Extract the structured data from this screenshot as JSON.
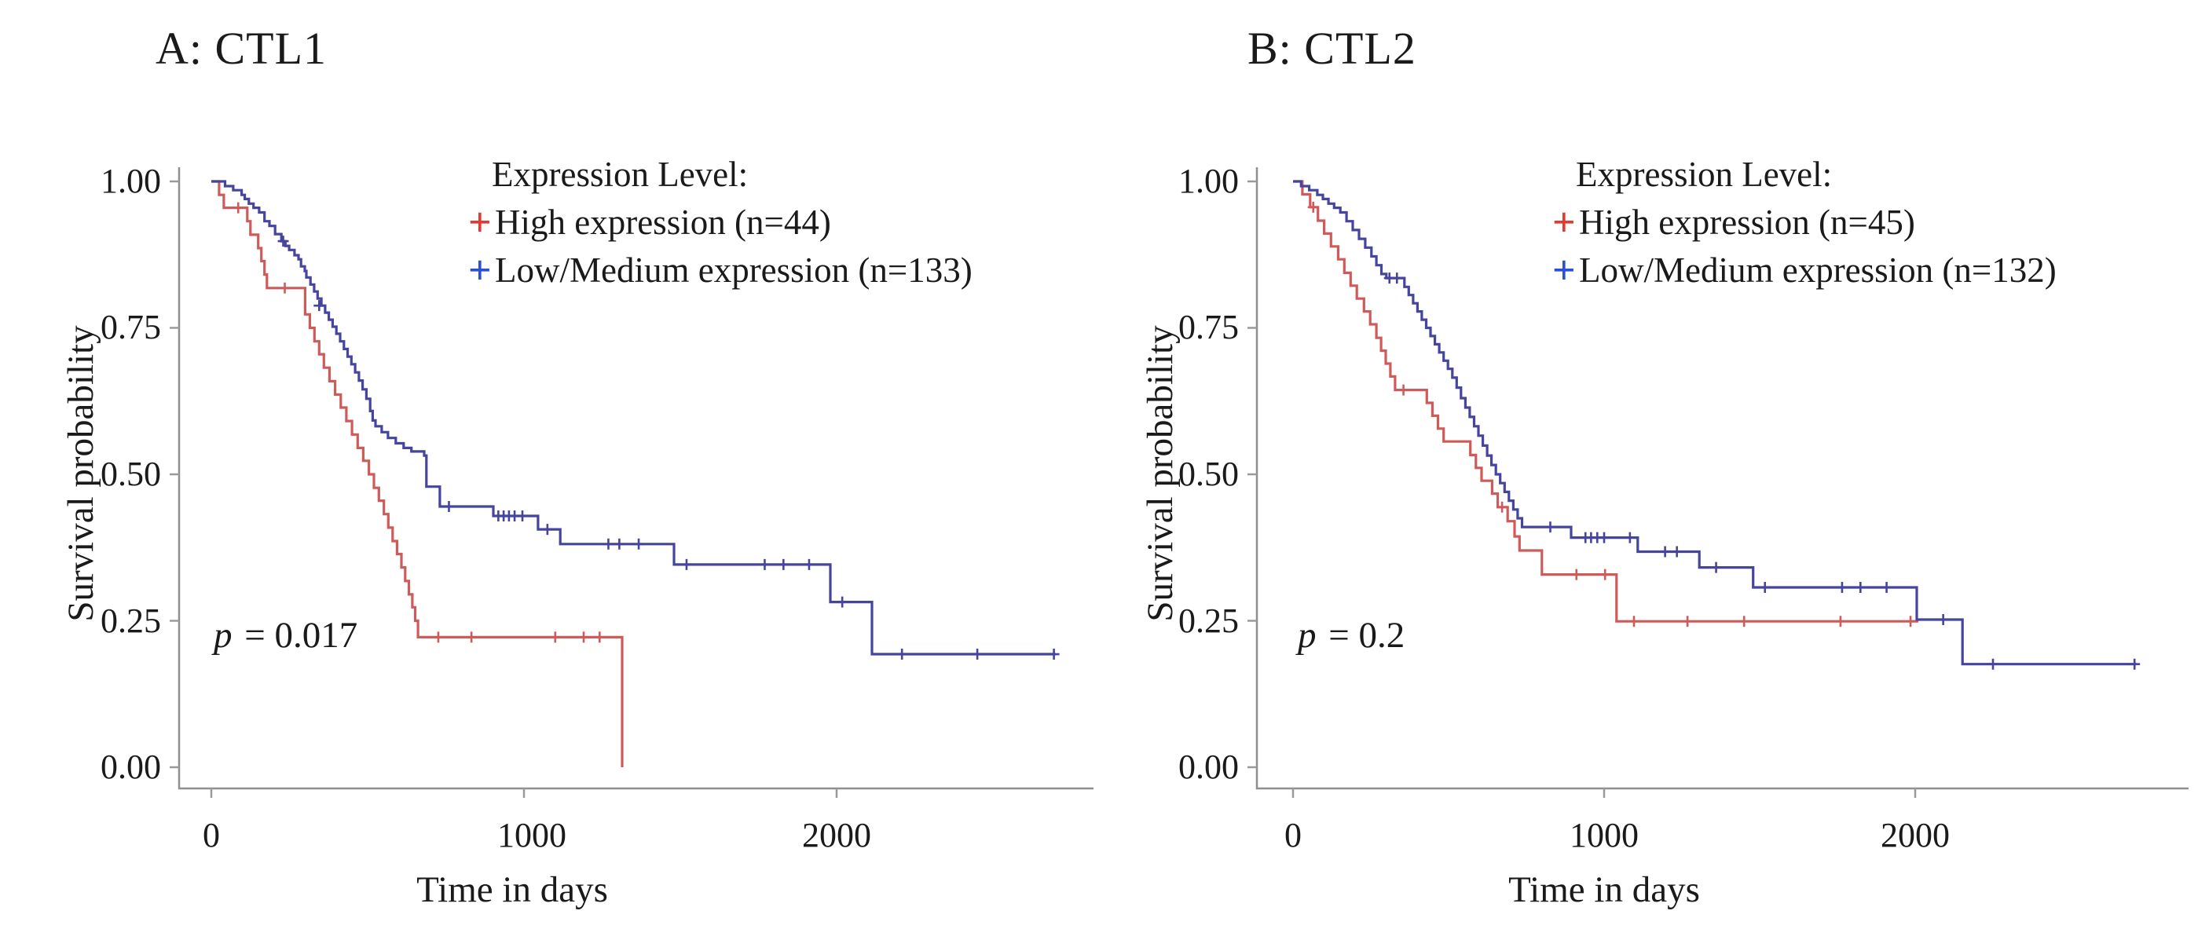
{
  "figure": {
    "background": "#ffffff",
    "accent_red": "#e23a30",
    "accent_blue": "#2b50d8"
  },
  "panels": [
    {
      "title": "A: CTL1",
      "ylabel": "Survival probability",
      "xlabel": "Time in days",
      "y_tick_labels": [
        "1.00",
        "0.75",
        "0.50",
        "0.25",
        "0.00"
      ],
      "x_tick_labels": [
        "0",
        "1000",
        "2000"
      ],
      "p_symbol": "p",
      "p_rest": "= 0.017",
      "legend": {
        "title": "Expression Level:",
        "entries": [
          {
            "marker": "+",
            "color": "#e23a30",
            "label": "High expression (n=44)"
          },
          {
            "marker": "+",
            "color": "#2b50d8",
            "label": "Low/Medium expression (n=133)"
          }
        ]
      }
    },
    {
      "title": "B: CTL2",
      "ylabel": "Survival probability",
      "xlabel": "Time in days",
      "y_tick_labels": [
        "1.00",
        "0.75",
        "0.50",
        "0.25",
        "0.00"
      ],
      "x_tick_labels": [
        "0",
        "1000",
        "2000"
      ],
      "p_symbol": "p",
      "p_rest": "= 0.2",
      "legend": {
        "title": "Expression Level:",
        "entries": [
          {
            "marker": "+",
            "color": "#e23a30",
            "label": "High expression (n=45)"
          },
          {
            "marker": "+",
            "color": "#2b50d8",
            "label": "Low/Medium expression (n=132)"
          }
        ]
      }
    }
  ],
  "chart_data": [
    {
      "panel": "A",
      "type": "line",
      "subtype": "kaplan-meier-step",
      "title": "A: CTL1",
      "xlabel": "Time in days",
      "ylabel": "Survival probability",
      "xlim": [
        0,
        2820
      ],
      "ylim": [
        0,
        1
      ],
      "x_ticks": [
        0,
        1000,
        2000
      ],
      "y_ticks": [
        0,
        0.25,
        0.5,
        0.75,
        1
      ],
      "grid": false,
      "legend_position": "top-right-inside",
      "p_value_text": "p = 0.017",
      "series": [
        {
          "name": "High expression (n=44)",
          "key": "high-expression",
          "n": 44,
          "color": "#cf5a5a",
          "steps": [
            [
              0,
              1.0
            ],
            [
              25,
              0.977
            ],
            [
              40,
              0.955
            ],
            [
              115,
              0.932
            ],
            [
              125,
              0.909
            ],
            [
              150,
              0.886
            ],
            [
              160,
              0.864
            ],
            [
              170,
              0.841
            ],
            [
              178,
              0.818
            ],
            [
              300,
              0.773
            ],
            [
              315,
              0.75
            ],
            [
              330,
              0.727
            ],
            [
              345,
              0.705
            ],
            [
              360,
              0.682
            ],
            [
              378,
              0.659
            ],
            [
              396,
              0.636
            ],
            [
              414,
              0.614
            ],
            [
              432,
              0.591
            ],
            [
              450,
              0.568
            ],
            [
              468,
              0.545
            ],
            [
              486,
              0.523
            ],
            [
              504,
              0.5
            ],
            [
              520,
              0.477
            ],
            [
              536,
              0.455
            ],
            [
              552,
              0.432
            ],
            [
              566,
              0.409
            ],
            [
              580,
              0.386
            ],
            [
              594,
              0.364
            ],
            [
              608,
              0.341
            ],
            [
              620,
              0.318
            ],
            [
              632,
              0.295
            ],
            [
              643,
              0.273
            ],
            [
              652,
              0.25
            ],
            [
              661,
              0.222
            ],
            [
              1314,
              0.0
            ]
          ],
          "end_day": 1314,
          "censors": [
            [
              86,
              0.955
            ],
            [
              235,
              0.818
            ],
            [
              726,
              0.222
            ],
            [
              832,
              0.222
            ],
            [
              1100,
              0.222
            ],
            [
              1191,
              0.222
            ],
            [
              1242,
              0.222
            ]
          ]
        },
        {
          "name": "Low/Medium expression (n=133)",
          "key": "low-medium-expression",
          "n": 133,
          "color": "#45459f",
          "steps": [
            [
              0,
              1.0
            ],
            [
              44,
              0.992
            ],
            [
              70,
              0.985
            ],
            [
              97,
              0.977
            ],
            [
              107,
              0.97
            ],
            [
              120,
              0.962
            ],
            [
              135,
              0.955
            ],
            [
              153,
              0.947
            ],
            [
              170,
              0.932
            ],
            [
              186,
              0.924
            ],
            [
              204,
              0.91
            ],
            [
              224,
              0.898
            ],
            [
              237,
              0.89
            ],
            [
              249,
              0.883
            ],
            [
              266,
              0.874
            ],
            [
              279,
              0.867
            ],
            [
              287,
              0.855
            ],
            [
              299,
              0.847
            ],
            [
              304,
              0.836
            ],
            [
              317,
              0.824
            ],
            [
              329,
              0.812
            ],
            [
              340,
              0.8
            ],
            [
              352,
              0.788
            ],
            [
              364,
              0.776
            ],
            [
              376,
              0.764
            ],
            [
              388,
              0.752
            ],
            [
              400,
              0.74
            ],
            [
              412,
              0.727
            ],
            [
              424,
              0.714
            ],
            [
              436,
              0.701
            ],
            [
              448,
              0.688
            ],
            [
              460,
              0.674
            ],
            [
              472,
              0.66
            ],
            [
              484,
              0.645
            ],
            [
              496,
              0.629
            ],
            [
              508,
              0.608
            ],
            [
              516,
              0.592
            ],
            [
              525,
              0.582
            ],
            [
              545,
              0.572
            ],
            [
              565,
              0.562
            ],
            [
              590,
              0.553
            ],
            [
              615,
              0.545
            ],
            [
              640,
              0.539
            ],
            [
              681,
              0.532
            ],
            [
              688,
              0.479
            ],
            [
              731,
              0.445
            ],
            [
              902,
              0.429
            ],
            [
              1045,
              0.406
            ],
            [
              1116,
              0.381
            ],
            [
              1480,
              0.346
            ],
            [
              1980,
              0.282
            ],
            [
              2113,
              0.193
            ]
          ],
          "end_day": 2700,
          "censors": [
            [
              230,
              0.898
            ],
            [
              345,
              0.788
            ],
            [
              760,
              0.445
            ],
            [
              918,
              0.429
            ],
            [
              935,
              0.429
            ],
            [
              952,
              0.429
            ],
            [
              970,
              0.429
            ],
            [
              995,
              0.429
            ],
            [
              1075,
              0.406
            ],
            [
              1270,
              0.381
            ],
            [
              1305,
              0.381
            ],
            [
              1367,
              0.381
            ],
            [
              1520,
              0.346
            ],
            [
              1770,
              0.346
            ],
            [
              1830,
              0.346
            ],
            [
              1912,
              0.346
            ],
            [
              2018,
              0.282
            ],
            [
              2209,
              0.193
            ],
            [
              2450,
              0.193
            ],
            [
              2695,
              0.193
            ]
          ]
        }
      ]
    },
    {
      "panel": "B",
      "type": "line",
      "subtype": "kaplan-meier-step",
      "title": "B: CTL2",
      "xlabel": "Time in days",
      "ylabel": "Survival probability",
      "xlim": [
        0,
        2820
      ],
      "ylim": [
        0,
        1
      ],
      "x_ticks": [
        0,
        1000,
        2000
      ],
      "y_ticks": [
        0,
        0.25,
        0.5,
        0.75,
        1
      ],
      "grid": false,
      "legend_position": "top-right-inside",
      "p_value_text": "p = 0.2",
      "series": [
        {
          "name": "High expression (n=45)",
          "key": "high-expression",
          "n": 45,
          "color": "#cf5a5a",
          "steps": [
            [
              0,
              1.0
            ],
            [
              30,
              0.978
            ],
            [
              55,
              0.956
            ],
            [
              80,
              0.933
            ],
            [
              100,
              0.911
            ],
            [
              122,
              0.889
            ],
            [
              145,
              0.867
            ],
            [
              165,
              0.844
            ],
            [
              185,
              0.822
            ],
            [
              205,
              0.8
            ],
            [
              228,
              0.778
            ],
            [
              248,
              0.756
            ],
            [
              268,
              0.733
            ],
            [
              283,
              0.711
            ],
            [
              298,
              0.689
            ],
            [
              313,
              0.667
            ],
            [
              328,
              0.644
            ],
            [
              430,
              0.622
            ],
            [
              448,
              0.6
            ],
            [
              466,
              0.578
            ],
            [
              484,
              0.556
            ],
            [
              570,
              0.533
            ],
            [
              588,
              0.511
            ],
            [
              606,
              0.489
            ],
            [
              640,
              0.467
            ],
            [
              658,
              0.444
            ],
            [
              690,
              0.42
            ],
            [
              712,
              0.394
            ],
            [
              728,
              0.37
            ],
            [
              800,
              0.329
            ],
            [
              1040,
              0.249
            ]
          ],
          "end_day": 2010,
          "censors": [
            [
              65,
              0.956
            ],
            [
              355,
              0.644
            ],
            [
              672,
              0.444
            ],
            [
              911,
              0.329
            ],
            [
              1003,
              0.329
            ],
            [
              1096,
              0.249
            ],
            [
              1268,
              0.249
            ],
            [
              1450,
              0.249
            ],
            [
              1760,
              0.249
            ],
            [
              1985,
              0.249
            ]
          ]
        },
        {
          "name": "Low/Medium expression (n=132)",
          "key": "low-medium-expression",
          "n": 132,
          "color": "#45459f",
          "steps": [
            [
              0,
              1.0
            ],
            [
              26,
              0.992
            ],
            [
              52,
              0.985
            ],
            [
              78,
              0.977
            ],
            [
              96,
              0.97
            ],
            [
              114,
              0.962
            ],
            [
              132,
              0.955
            ],
            [
              152,
              0.947
            ],
            [
              172,
              0.932
            ],
            [
              192,
              0.917
            ],
            [
              212,
              0.902
            ],
            [
              232,
              0.887
            ],
            [
              252,
              0.872
            ],
            [
              268,
              0.857
            ],
            [
              284,
              0.842
            ],
            [
              300,
              0.835
            ],
            [
              358,
              0.82
            ],
            [
              372,
              0.806
            ],
            [
              386,
              0.792
            ],
            [
              400,
              0.778
            ],
            [
              414,
              0.764
            ],
            [
              428,
              0.75
            ],
            [
              442,
              0.736
            ],
            [
              456,
              0.722
            ],
            [
              470,
              0.708
            ],
            [
              484,
              0.694
            ],
            [
              498,
              0.68
            ],
            [
              512,
              0.665
            ],
            [
              526,
              0.648
            ],
            [
              540,
              0.63
            ],
            [
              554,
              0.614
            ],
            [
              568,
              0.598
            ],
            [
              582,
              0.582
            ],
            [
              596,
              0.566
            ],
            [
              610,
              0.549
            ],
            [
              624,
              0.532
            ],
            [
              638,
              0.516
            ],
            [
              652,
              0.5
            ],
            [
              666,
              0.485
            ],
            [
              680,
              0.47
            ],
            [
              694,
              0.455
            ],
            [
              708,
              0.44
            ],
            [
              722,
              0.425
            ],
            [
              736,
              0.41
            ],
            [
              894,
              0.392
            ],
            [
              1108,
              0.368
            ],
            [
              1306,
              0.341
            ],
            [
              1479,
              0.307
            ],
            [
              2005,
              0.252
            ],
            [
              2152,
              0.176
            ]
          ],
          "end_day": 2710,
          "censors": [
            [
              310,
              0.835
            ],
            [
              334,
              0.835
            ],
            [
              827,
              0.41
            ],
            [
              940,
              0.392
            ],
            [
              958,
              0.392
            ],
            [
              978,
              0.392
            ],
            [
              1000,
              0.392
            ],
            [
              1083,
              0.392
            ],
            [
              1196,
              0.368
            ],
            [
              1234,
              0.368
            ],
            [
              1360,
              0.341
            ],
            [
              1517,
              0.307
            ],
            [
              1765,
              0.307
            ],
            [
              1824,
              0.307
            ],
            [
              1908,
              0.307
            ],
            [
              2090,
              0.252
            ],
            [
              2250,
              0.176
            ],
            [
              2705,
              0.176
            ]
          ]
        }
      ]
    }
  ]
}
